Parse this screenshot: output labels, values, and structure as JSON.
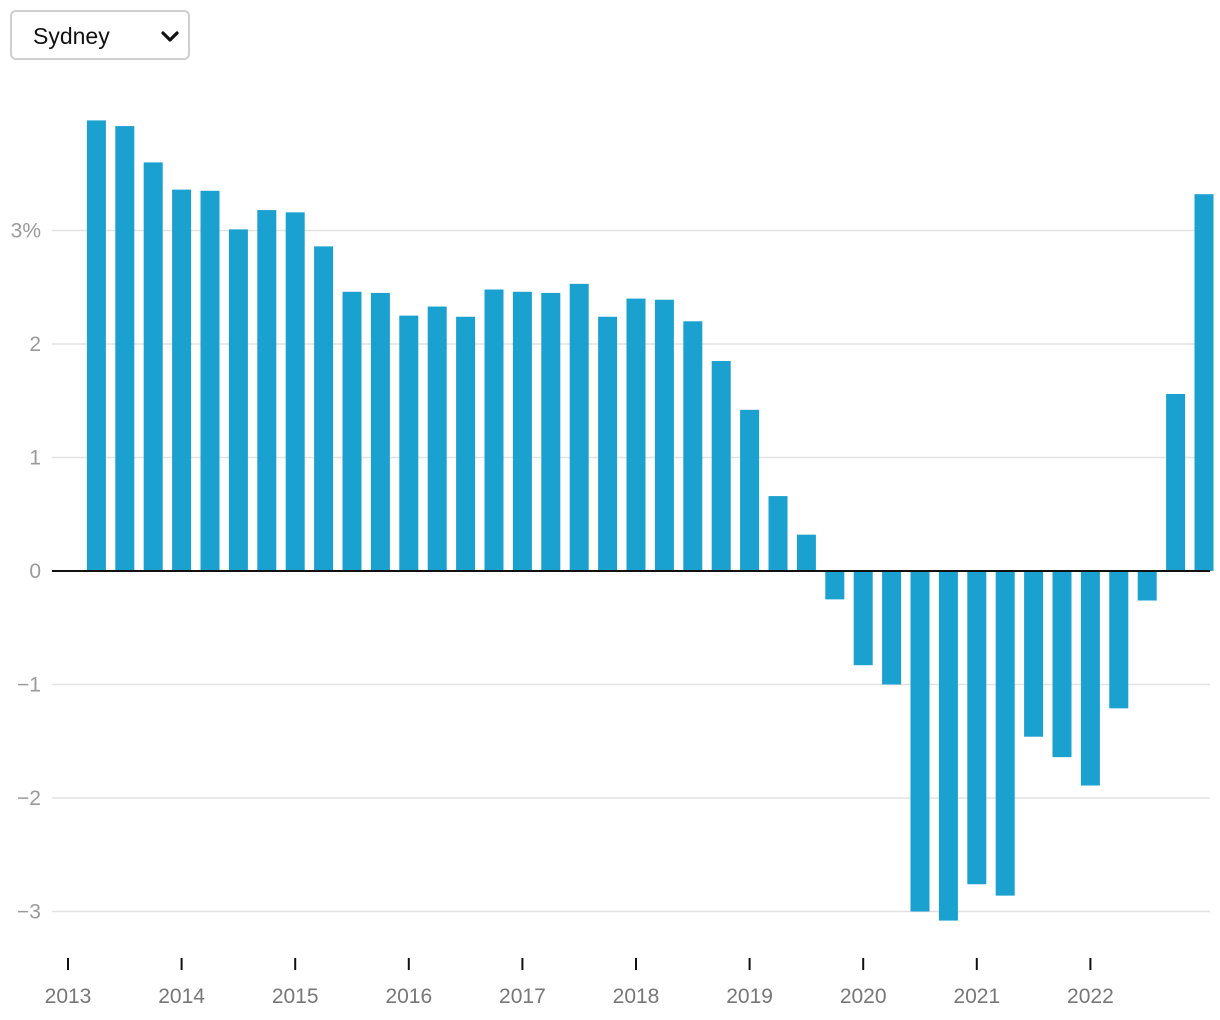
{
  "region_select": {
    "selected": "Sydney"
  },
  "chart_data": {
    "type": "bar",
    "color": "#1aa1d0",
    "y_tick_labels": [
      "3%",
      "2",
      "1",
      "0",
      "−1",
      "−2",
      "−3"
    ],
    "y_ticks": [
      3,
      2,
      1,
      0,
      -1,
      -2,
      -3
    ],
    "ylim": [
      -3.3,
      4.2
    ],
    "x_tick_labels": [
      "2013",
      "2014",
      "2015",
      "2016",
      "2017",
      "2018",
      "2019",
      "2020",
      "2021",
      "2022"
    ],
    "x_start_year": 2013,
    "quarters_per_year": 4,
    "first_bar_quarter_offset": 1,
    "values": [
      3.97,
      3.92,
      3.6,
      3.36,
      3.35,
      3.01,
      3.18,
      3.16,
      2.86,
      2.46,
      2.45,
      2.25,
      2.33,
      2.24,
      2.48,
      2.46,
      2.45,
      2.53,
      2.24,
      2.4,
      2.39,
      2.2,
      1.85,
      1.42,
      0.66,
      0.32,
      -0.25,
      -0.83,
      -1.0,
      -3.0,
      -3.08,
      -2.76,
      -2.86,
      -1.46,
      -1.64,
      -1.89,
      -1.21,
      -0.26,
      1.56,
      3.32
    ],
    "grid": true
  }
}
